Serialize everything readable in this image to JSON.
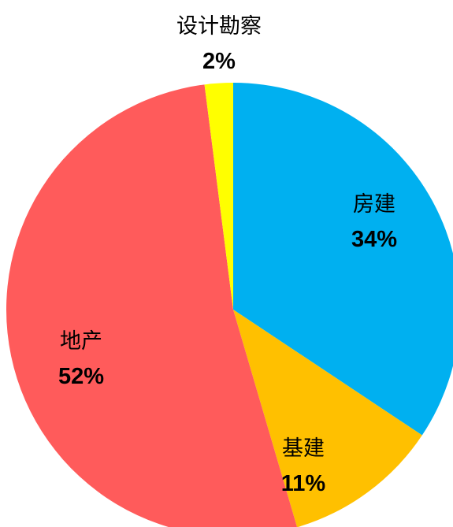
{
  "chart_data": {
    "type": "pie",
    "categories": [
      "房建",
      "基建",
      "地产",
      "设计勘察"
    ],
    "values": [
      34,
      11,
      52,
      2
    ],
    "value_labels": [
      "34%",
      "11%",
      "52%",
      "2%"
    ],
    "colors": [
      "#00b0f0",
      "#ffc000",
      "#ff5b5b",
      "#ffff00"
    ]
  }
}
